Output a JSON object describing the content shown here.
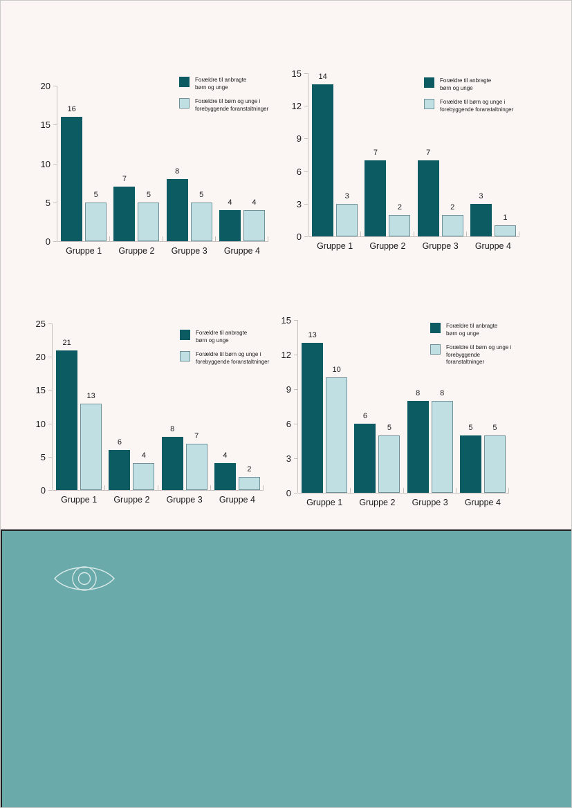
{
  "page": {
    "background": "#fbf6f4",
    "border_color": "#c9c9c9",
    "text_color": "#1a1a1a",
    "axis_color": "#c6bfbc"
  },
  "series_colors": {
    "series1_fill": "#0c5b62",
    "series2_fill": "#bfdfe3",
    "series2_border": "#6e9298"
  },
  "legend": {
    "items": [
      {
        "swatch": "series1",
        "lines": [
          "Forældre til anbragte",
          "børn og unge"
        ]
      },
      {
        "swatch": "series2",
        "lines": [
          "Forældre til børn og unge i",
          "forebyggende foranstaltninger"
        ]
      }
    ]
  },
  "chart_data": [
    {
      "type": "bar",
      "categories": [
        "Gruppe 1",
        "Gruppe 2",
        "Gruppe 3",
        "Gruppe 4"
      ],
      "series": [
        {
          "name": "Forældre til anbragte børn og unge",
          "values": [
            16,
            7,
            8,
            4
          ]
        },
        {
          "name": "Forældre til børn og unge i forebyggende foranstaltninger",
          "values": [
            5,
            5,
            5,
            4
          ]
        }
      ],
      "ylim": [
        0,
        20
      ],
      "yticks": [
        0,
        5,
        10,
        15,
        20
      ],
      "grid": false,
      "legend_position": "top-right",
      "bar_value_labels": true
    },
    {
      "type": "bar",
      "categories": [
        "Gruppe 1",
        "Gruppe 2",
        "Gruppe 3",
        "Gruppe 4"
      ],
      "series": [
        {
          "name": "Forældre til anbragte børn og unge",
          "values": [
            14,
            7,
            7,
            3
          ]
        },
        {
          "name": "Forældre til børn og unge i forebyggende foranstaltninger",
          "values": [
            3,
            2,
            2,
            1
          ]
        }
      ],
      "ylim": [
        0,
        15
      ],
      "yticks": [
        0,
        3,
        6,
        9,
        12,
        15
      ],
      "grid": false,
      "legend_position": "top-right",
      "bar_value_labels": true
    },
    {
      "type": "bar",
      "categories": [
        "Gruppe 1",
        "Gruppe 2",
        "Gruppe 3",
        "Gruppe 4"
      ],
      "series": [
        {
          "name": "Forældre til anbragte børn og unge",
          "values": [
            21,
            6,
            8,
            4
          ]
        },
        {
          "name": "Forældre til børn og unge i forebyggende foranstaltninger",
          "values": [
            13,
            4,
            7,
            2
          ]
        }
      ],
      "ylim": [
        0,
        25
      ],
      "yticks": [
        0,
        5,
        10,
        15,
        20,
        25
      ],
      "grid": false,
      "legend_position": "top-right",
      "bar_value_labels": true
    },
    {
      "type": "bar",
      "categories": [
        "Gruppe 1",
        "Gruppe 2",
        "Gruppe 3",
        "Gruppe 4"
      ],
      "series": [
        {
          "name": "Forældre til anbragte børn og unge",
          "values": [
            13,
            6,
            8,
            5
          ]
        },
        {
          "name": "Forældre til børn og unge i forebyggende foranstaltninger",
          "values": [
            10,
            5,
            8,
            5
          ]
        }
      ],
      "ylim": [
        0,
        15
      ],
      "yticks": [
        0,
        3,
        6,
        9,
        12,
        15
      ],
      "grid": false,
      "legend_position": "top-right",
      "bar_value_labels": true
    }
  ],
  "footer": {
    "background": "#6aaaab",
    "border_color": "#1f1f1f",
    "icon": "eye-icon",
    "icon_color": "#d9e9e8"
  }
}
